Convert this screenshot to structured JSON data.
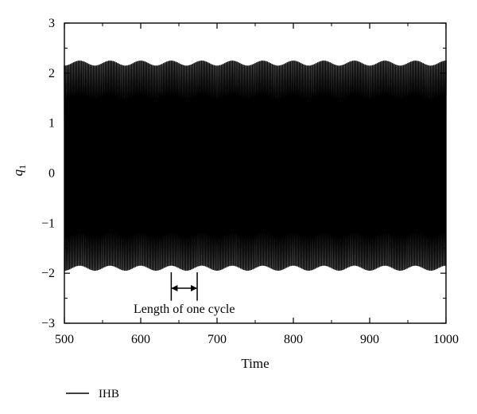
{
  "chart_data": {
    "type": "line",
    "title": "",
    "xlabel": "Time",
    "ylabel": "q",
    "ylabel_subscript": "1",
    "xlim": [
      500,
      1000
    ],
    "ylim": [
      -3,
      3
    ],
    "x_ticks": [
      500,
      600,
      700,
      800,
      900,
      1000
    ],
    "y_ticks": [
      -3,
      -2,
      -1,
      0,
      1,
      2,
      3
    ],
    "x_tick_labels": [
      "500",
      "600",
      "700",
      "800",
      "900",
      "1000"
    ],
    "y_tick_labels": [
      "−3",
      "−2",
      "−1",
      "0",
      "1",
      "2",
      "3"
    ],
    "grid": false,
    "legend_position": "bottom-left",
    "series": [
      {
        "name": "IHB",
        "color": "#000000",
        "oscillation_period": 2,
        "upper_envelope": {
          "max": 2.25,
          "min": 2.15
        },
        "lower_envelope": {
          "min": -1.95,
          "max": -1.85
        },
        "x_range": [
          500,
          1000
        ]
      }
    ],
    "annotations": [
      {
        "text": "Length of one cycle",
        "x_start": 640,
        "x_end": 674,
        "y": -2.3
      }
    ]
  }
}
